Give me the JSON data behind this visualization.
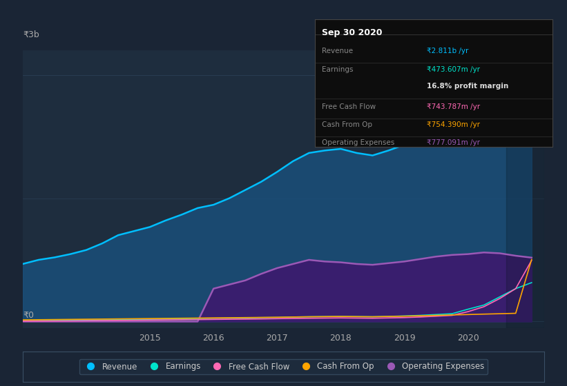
{
  "bg_color": "#1a2535",
  "plot_bg_color": "#1e2d3e",
  "grid_color": "#2a3f55",
  "y_label_top": "₹3b",
  "y_label_bottom": "₹0",
  "x_ticks": [
    2015,
    2016,
    2017,
    2018,
    2019,
    2020
  ],
  "years": [
    2013.0,
    2013.25,
    2013.5,
    2013.75,
    2014.0,
    2014.25,
    2014.5,
    2014.75,
    2015.0,
    2015.25,
    2015.5,
    2015.75,
    2016.0,
    2016.25,
    2016.5,
    2016.75,
    2017.0,
    2017.25,
    2017.5,
    2017.75,
    2018.0,
    2018.25,
    2018.5,
    2018.75,
    2019.0,
    2019.25,
    2019.5,
    2019.75,
    2020.0,
    2020.25,
    2020.5,
    2020.75,
    2021.0
  ],
  "revenue": [
    700,
    750,
    780,
    820,
    870,
    950,
    1050,
    1100,
    1150,
    1230,
    1300,
    1380,
    1420,
    1500,
    1600,
    1700,
    1820,
    1950,
    2050,
    2080,
    2100,
    2050,
    2020,
    2080,
    2150,
    2250,
    2400,
    2550,
    2750,
    2900,
    2600,
    2700,
    2811
  ],
  "earnings": [
    10,
    12,
    14,
    15,
    18,
    20,
    22,
    25,
    28,
    32,
    35,
    38,
    40,
    42,
    45,
    48,
    50,
    55,
    58,
    60,
    62,
    60,
    58,
    62,
    68,
    75,
    85,
    95,
    150,
    200,
    300,
    400,
    473
  ],
  "free_cash_flow": [
    5,
    6,
    7,
    8,
    10,
    12,
    14,
    16,
    18,
    20,
    22,
    24,
    26,
    28,
    30,
    32,
    35,
    38,
    40,
    42,
    44,
    42,
    40,
    44,
    48,
    55,
    65,
    75,
    120,
    180,
    280,
    400,
    744
  ],
  "cash_from_op": [
    20,
    22,
    24,
    26,
    28,
    30,
    32,
    34,
    36,
    38,
    40,
    42,
    44,
    46,
    48,
    50,
    52,
    55,
    58,
    60,
    62,
    60,
    58,
    62,
    65,
    70,
    75,
    80,
    85,
    90,
    95,
    100,
    754
  ],
  "operating_expenses": [
    0,
    0,
    0,
    0,
    0,
    0,
    0,
    0,
    0,
    0,
    0,
    0,
    400,
    450,
    500,
    580,
    650,
    700,
    750,
    730,
    720,
    700,
    690,
    710,
    730,
    760,
    790,
    810,
    820,
    840,
    830,
    800,
    777
  ],
  "revenue_color": "#00bfff",
  "revenue_fill_color": "#1a4f7a",
  "earnings_color": "#00e5cc",
  "free_cash_flow_color": "#ff69b4",
  "cash_from_op_color": "#ffa500",
  "operating_expenses_color": "#9b59b6",
  "operating_expenses_fill_color": "#3d1a6e",
  "legend_items": [
    {
      "label": "Revenue",
      "color": "#00bfff"
    },
    {
      "label": "Earnings",
      "color": "#00e5cc"
    },
    {
      "label": "Free Cash Flow",
      "color": "#ff69b4"
    },
    {
      "label": "Cash From Op",
      "color": "#ffa500"
    },
    {
      "label": "Operating Expenses",
      "color": "#9b59b6"
    }
  ],
  "info_title": "Sep 30 2020",
  "info_rows": [
    {
      "label": "Revenue",
      "value": "₹2.811b /yr",
      "value_color": "#00bfff",
      "divider_after": true
    },
    {
      "label": "Earnings",
      "value": "₹473.607m /yr",
      "value_color": "#00e5cc",
      "divider_after": false
    },
    {
      "label": "",
      "value": "16.8% profit margin",
      "value_color": "#dddddd",
      "divider_after": true
    },
    {
      "label": "Free Cash Flow",
      "value": "₹743.787m /yr",
      "value_color": "#ff69b4",
      "divider_after": true
    },
    {
      "label": "Cash From Op",
      "value": "₹754.390m /yr",
      "value_color": "#ffa500",
      "divider_after": true
    },
    {
      "label": "Operating Expenses",
      "value": "₹777.091m /yr",
      "value_color": "#9b59b6",
      "divider_after": false
    }
  ]
}
